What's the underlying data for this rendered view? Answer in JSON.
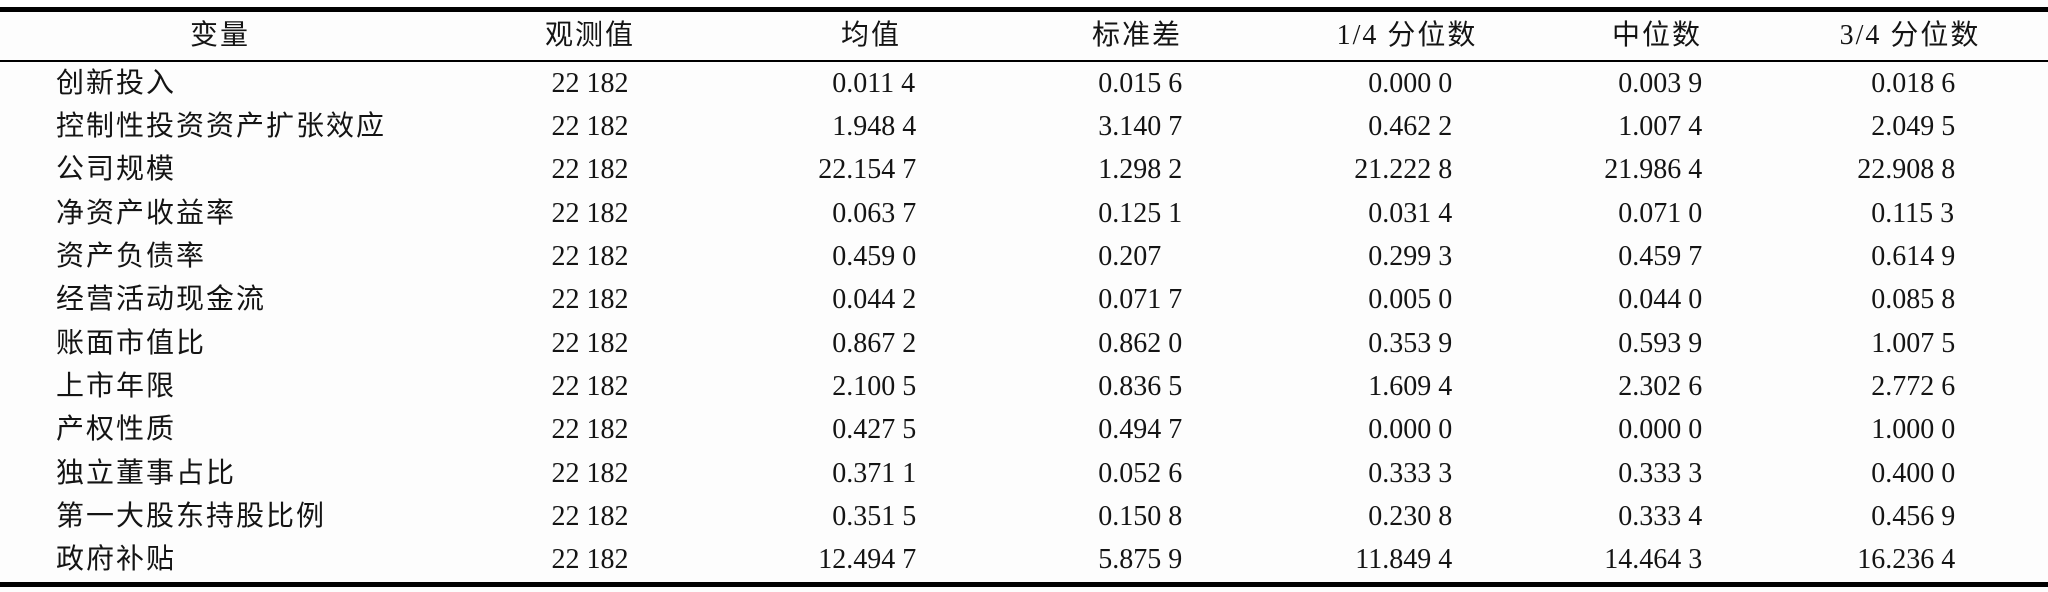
{
  "page": {
    "background": "#fdfdfd",
    "text_color": "#141414",
    "rule_color": "#000000"
  },
  "table": {
    "columns": [
      "变量",
      "观测值",
      "均值",
      "标准差",
      "1/4 分位数",
      "中位数",
      "3/4 分位数"
    ],
    "rows": [
      {
        "variable": "创新投入",
        "obs": "22 182",
        "mean": "0.011 4",
        "sd": "0.015 6",
        "q1": "0.000 0",
        "median": "0.003 9",
        "q3": "0.018 6"
      },
      {
        "variable": "控制性投资资产扩张效应",
        "obs": "22 182",
        "mean": "1.948 4",
        "sd": "3.140 7",
        "q1": "0.462 2",
        "median": "1.007 4",
        "q3": "2.049 5"
      },
      {
        "variable": "公司规模",
        "obs": "22 182",
        "mean": "22.154 7",
        "sd": "1.298 2",
        "q1": "21.222 8",
        "median": "21.986 4",
        "q3": "22.908 8"
      },
      {
        "variable": "净资产收益率",
        "obs": "22 182",
        "mean": "0.063 7",
        "sd": "0.125 1",
        "q1": "0.031 4",
        "median": "0.071 0",
        "q3": "0.115 3"
      },
      {
        "variable": "资产负债率",
        "obs": "22 182",
        "mean": "0.459 0",
        "sd": "0.207",
        "q1": "0.299 3",
        "median": "0.459 7",
        "q3": "0.614 9"
      },
      {
        "variable": "经营活动现金流",
        "obs": "22 182",
        "mean": "0.044 2",
        "sd": "0.071 7",
        "q1": "0.005 0",
        "median": "0.044 0",
        "q3": "0.085 8"
      },
      {
        "variable": "账面市值比",
        "obs": "22 182",
        "mean": "0.867 2",
        "sd": "0.862 0",
        "q1": "0.353 9",
        "median": "0.593 9",
        "q3": "1.007 5"
      },
      {
        "variable": "上市年限",
        "obs": "22 182",
        "mean": "2.100 5",
        "sd": "0.836 5",
        "q1": "1.609 4",
        "median": "2.302 6",
        "q3": "2.772 6"
      },
      {
        "variable": "产权性质",
        "obs": "22 182",
        "mean": "0.427 5",
        "sd": "0.494 7",
        "q1": "0.000 0",
        "median": "0.000 0",
        "q3": "1.000 0"
      },
      {
        "variable": "独立董事占比",
        "obs": "22 182",
        "mean": "0.371 1",
        "sd": "0.052 6",
        "q1": "0.333 3",
        "median": "0.333 3",
        "q3": "0.400 0"
      },
      {
        "variable": "第一大股东持股比例",
        "obs": "22 182",
        "mean": "0.351 5",
        "sd": "0.150 8",
        "q1": "0.230 8",
        "median": "0.333 4",
        "q3": "0.456 9"
      },
      {
        "variable": "政府补贴",
        "obs": "22 182",
        "mean": "12.494 7",
        "sd": "5.875 9",
        "q1": "11.849 4",
        "median": "14.464 3",
        "q3": "16.236 4"
      }
    ]
  }
}
